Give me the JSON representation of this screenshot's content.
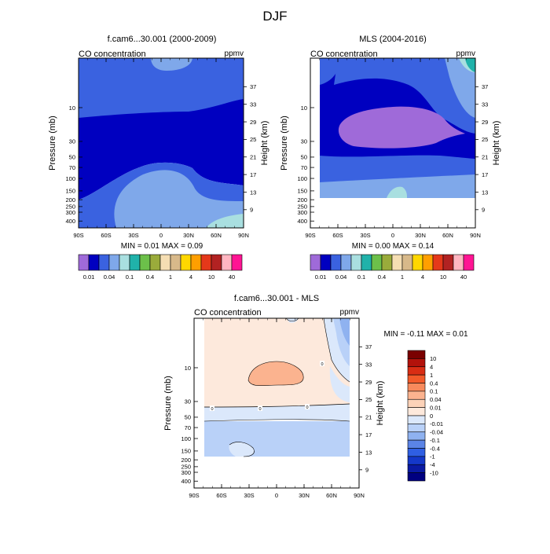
{
  "figure_title": "DJF",
  "ymid_label": "Pressure (mb)",
  "yright_label": "Height (km)",
  "panel_left": {
    "title": "f.cam6...30.001 (2000-2009)",
    "left_text": "CO concentration",
    "right_text": "ppmv",
    "minmax": "MIN =  0.01   MAX =  0.09"
  },
  "panel_right": {
    "title": "MLS (2004-2016)",
    "left_text": "CO concentration",
    "right_text": "ppmv",
    "minmax": "MIN =  0.00   MAX =  0.14"
  },
  "panel_diff": {
    "title": "f.cam6...30.001 - MLS",
    "left_text": "CO concentration",
    "right_text": "ppmv",
    "minmax": "MIN = -0.11   MAX =  0.01"
  },
  "chart_data": [
    {
      "type": "heatmap",
      "title": "f.cam6...30.001 (2000-2009)",
      "x_ticks": [
        "90S",
        "60S",
        "30S",
        "0",
        "30N",
        "60N",
        "90N"
      ],
      "y_ticks_pressure": [
        "10",
        "30",
        "50",
        "70",
        "100",
        "150",
        "200",
        "250",
        "300",
        "400"
      ],
      "y_ticks_height": [
        "37",
        "33",
        "29",
        "25",
        "21",
        "17",
        "13",
        "9"
      ],
      "xlabel": "",
      "ylabel": "Pressure (mb)",
      "y2label": "Height (km)",
      "colorbar_labels": [
        "0.01",
        "0.04",
        "0.1",
        "0.4",
        "1",
        "4",
        "10",
        "40"
      ],
      "colorbar_colors": [
        "#9f6ad9",
        "#0000c0",
        "#3a62e0",
        "#7fa8ea",
        "#a9dfe0",
        "#20b2aa",
        "#6cc04a",
        "#9aab3b",
        "#f5deb3",
        "#d8b98a",
        "#ffd700",
        "#ff9f00",
        "#e5381a",
        "#b22222",
        "#ffb6c1",
        "#ff1493"
      ]
    },
    {
      "type": "heatmap",
      "title": "MLS (2004-2016)",
      "x_ticks": [
        "90S",
        "60S",
        "30S",
        "0",
        "30N",
        "60N",
        "90N"
      ],
      "y_ticks_pressure": [
        "10",
        "30",
        "50",
        "70",
        "100",
        "150",
        "200",
        "250",
        "300",
        "400"
      ],
      "y_ticks_height": [
        "37",
        "33",
        "29",
        "25",
        "21",
        "17",
        "13",
        "9"
      ],
      "xlabel": "",
      "ylabel": "Pressure (mb)",
      "y2label": "Height (km)",
      "colorbar_labels": [
        "0.01",
        "0.04",
        "0.1",
        "0.4",
        "1",
        "4",
        "10",
        "40"
      ],
      "colorbar_colors": [
        "#9f6ad9",
        "#0000c0",
        "#3a62e0",
        "#7fa8ea",
        "#a9dfe0",
        "#20b2aa",
        "#6cc04a",
        "#9aab3b",
        "#f5deb3",
        "#d8b98a",
        "#ffd700",
        "#ff9f00",
        "#e5381a",
        "#b22222",
        "#ffb6c1",
        "#ff1493"
      ]
    },
    {
      "type": "heatmap",
      "title": "f.cam6...30.001 - MLS",
      "x_ticks": [
        "90S",
        "60S",
        "30S",
        "0",
        "30N",
        "60N",
        "90N"
      ],
      "y_ticks_pressure": [
        "10",
        "30",
        "50",
        "70",
        "100",
        "150",
        "200",
        "250",
        "300",
        "400"
      ],
      "y_ticks_height": [
        "37",
        "33",
        "29",
        "25",
        "21",
        "17",
        "13",
        "9"
      ],
      "xlabel": "",
      "ylabel": "Pressure (mb)",
      "y2label": "Height (km)",
      "contour_labels": [
        "0"
      ],
      "colorbar_labels": [
        "10",
        "4",
        "1",
        "0.4",
        "0.1",
        "0.04",
        "0.01",
        "0",
        "-0.01",
        "-0.04",
        "-0.1",
        "-0.4",
        "-1",
        "-4",
        "-10"
      ],
      "colorbar_colors": [
        "#7a0000",
        "#b3120b",
        "#d92d14",
        "#f25a2a",
        "#f88a5c",
        "#fbb38f",
        "#fcd2b8",
        "#fde9dc",
        "#dbe8fb",
        "#b9d1f8",
        "#8fb2f0",
        "#5b84e6",
        "#2f5fe3",
        "#1438c9",
        "#0a1aa3",
        "#000080"
      ]
    }
  ]
}
